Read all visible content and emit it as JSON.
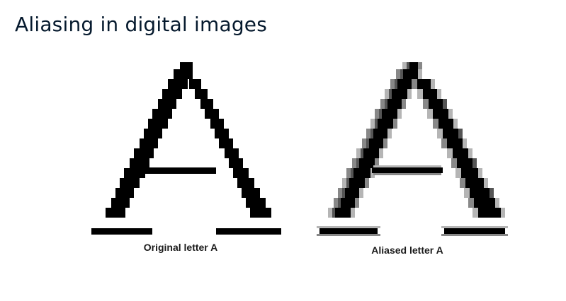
{
  "slide": {
    "title": "Aliasing in digital images"
  },
  "figures": {
    "original": {
      "caption": "Original letter A",
      "pixel_color": "#000000"
    },
    "aliased": {
      "caption": "Aliased letter A",
      "pixel_color": "#000000",
      "gray_dark": "#555555",
      "gray_mid": "#888888",
      "gray_light": "#b5b5b5"
    }
  }
}
